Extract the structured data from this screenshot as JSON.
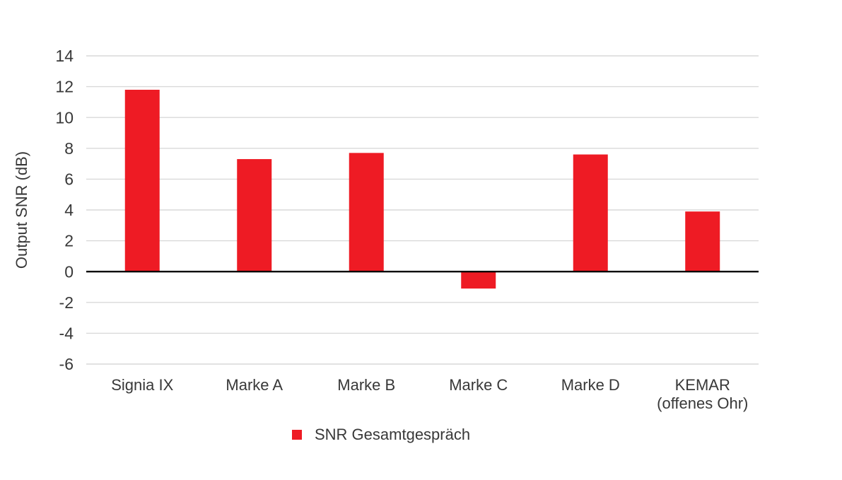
{
  "chart_data": {
    "type": "bar",
    "title": "",
    "xlabel": "",
    "ylabel": "Output SNR (dB)",
    "categories": [
      "Signia IX",
      "Marke A",
      "Marke B",
      "Marke C",
      "Marke D",
      "KEMAR (offenes Ohr)"
    ],
    "category_lines": [
      [
        "Signia IX"
      ],
      [
        "Marke A"
      ],
      [
        "Marke B"
      ],
      [
        "Marke C"
      ],
      [
        "Marke D"
      ],
      [
        "KEMAR",
        "(offenes Ohr)"
      ]
    ],
    "series": [
      {
        "name": "SNR Gesamtgespräch",
        "values": [
          11.8,
          7.3,
          7.7,
          -1.1,
          7.6,
          3.9
        ]
      }
    ],
    "values": [
      11.8,
      7.3,
      7.7,
      -1.1,
      7.6,
      3.9
    ],
    "ylim": [
      -6,
      14
    ],
    "yticks": [
      14,
      12,
      10,
      8,
      6,
      4,
      2,
      0,
      -2,
      -4,
      -6
    ],
    "grid": true,
    "legend": {
      "position": "bottom",
      "entries": [
        {
          "label": "SNR Gesamtgespräch",
          "color": "#EE1B24",
          "marker": "square-icon"
        }
      ]
    },
    "colors": {
      "bar": "#EE1B24",
      "gridline": "#D9D9D9",
      "zero_axis": "#000000",
      "text": "#383838"
    }
  }
}
